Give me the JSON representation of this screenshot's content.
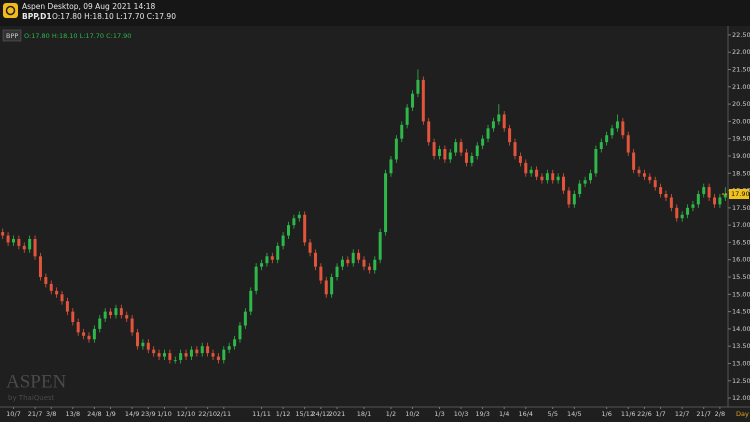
{
  "header": {
    "title": "Aspen Desktop, 09 Aug 2021 14:18",
    "symbol": "BPP,D1",
    "ohlc": "O:17.80 H:18.10 L:17.70 C:17.90"
  },
  "chart_data": {
    "type": "candlestick",
    "symbol": "BPP",
    "ohlc_text": "O:17.80 H:18.10 L:17.70 C:17.90",
    "timeframe": "Day",
    "watermark": "ASPEN",
    "watermark_sub": "by ThaiQuest",
    "up_color": "#2eb84a",
    "down_color": "#e2553b",
    "last_price": {
      "value": 17.9,
      "label": "17.90"
    },
    "categories": [
      null,
      null,
      "10/7",
      null,
      null,
      null,
      "21/7",
      null,
      null,
      "3/8",
      null,
      null,
      null,
      "13/8",
      null,
      null,
      null,
      "24/8",
      null,
      null,
      "1/9",
      null,
      null,
      null,
      "14/9",
      null,
      null,
      "23/9",
      null,
      null,
      "1/10",
      null,
      null,
      null,
      "12/10",
      null,
      null,
      null,
      "22/10",
      null,
      null,
      "2/11",
      null,
      null,
      null,
      null,
      null,
      null,
      "11/11",
      null,
      null,
      null,
      "1/12",
      null,
      null,
      null,
      "15/12",
      null,
      null,
      "24/12",
      null,
      null,
      "2021",
      null,
      null,
      null,
      null,
      "18/1",
      null,
      null,
      null,
      null,
      "1/2",
      null,
      null,
      null,
      "10/2",
      null,
      null,
      null,
      null,
      "1/3",
      null,
      null,
      null,
      "10/3",
      null,
      null,
      null,
      "19/3",
      null,
      null,
      null,
      "1/4",
      null,
      null,
      null,
      "16/4",
      null,
      null,
      null,
      null,
      "5/5",
      null,
      null,
      null,
      "14/5",
      null,
      null,
      null,
      null,
      null,
      "1/6",
      null,
      null,
      null,
      "11/6",
      null,
      null,
      "22/6",
      null,
      null,
      "1/7",
      null,
      null,
      null,
      "12/7",
      null,
      null,
      null,
      "21/7",
      null,
      null,
      "2/8",
      null
    ],
    "open": [
      16.8,
      16.7,
      16.5,
      16.6,
      16.4,
      16.3,
      16.6,
      16.1,
      15.5,
      15.3,
      15.1,
      15.0,
      14.8,
      14.5,
      14.2,
      13.9,
      13.8,
      13.7,
      14.0,
      14.3,
      14.5,
      14.4,
      14.6,
      14.4,
      14.3,
      13.9,
      13.5,
      13.6,
      13.4,
      13.3,
      13.2,
      13.3,
      13.1,
      13.1,
      13.3,
      13.2,
      13.4,
      13.3,
      13.5,
      13.3,
      13.2,
      13.1,
      13.4,
      13.5,
      13.7,
      14.1,
      14.5,
      15.1,
      15.8,
      15.9,
      16.1,
      16.0,
      16.4,
      16.7,
      17.0,
      17.2,
      17.3,
      16.5,
      16.2,
      15.8,
      15.4,
      15.0,
      15.5,
      15.8,
      16.0,
      15.9,
      16.2,
      16.0,
      15.8,
      15.7,
      16.0,
      16.8,
      18.5,
      18.9,
      19.5,
      19.9,
      20.4,
      20.8,
      21.2,
      20.0,
      19.4,
      19.0,
      19.2,
      18.9,
      19.1,
      19.4,
      19.1,
      18.8,
      19.0,
      19.3,
      19.5,
      19.8,
      20.0,
      20.2,
      19.8,
      19.4,
      19.0,
      18.8,
      18.5,
      18.6,
      18.4,
      18.3,
      18.5,
      18.3,
      18.4,
      18.0,
      17.6,
      17.9,
      18.2,
      18.3,
      18.5,
      19.2,
      19.4,
      19.6,
      19.8,
      20.0,
      19.6,
      19.1,
      18.6,
      18.5,
      18.4,
      18.3,
      18.1,
      17.9,
      17.8,
      17.5,
      17.2,
      17.3,
      17.5,
      17.6,
      17.9,
      18.1,
      17.8,
      17.6,
      17.8
    ],
    "high": [
      16.9,
      16.8,
      16.7,
      16.7,
      16.5,
      16.7,
      16.7,
      16.2,
      15.6,
      15.4,
      15.2,
      15.1,
      14.9,
      14.6,
      14.3,
      14.0,
      13.9,
      14.1,
      14.4,
      14.6,
      14.6,
      14.7,
      14.7,
      14.5,
      14.4,
      14.0,
      13.7,
      13.7,
      13.5,
      13.4,
      13.4,
      13.4,
      13.2,
      13.4,
      13.4,
      13.5,
      13.5,
      13.6,
      13.6,
      13.4,
      13.3,
      13.5,
      13.6,
      13.8,
      14.2,
      14.6,
      15.2,
      15.9,
      16.0,
      16.2,
      16.2,
      16.5,
      16.8,
      17.1,
      17.3,
      17.4,
      17.4,
      16.6,
      16.3,
      15.9,
      15.5,
      15.6,
      15.9,
      16.1,
      16.1,
      16.3,
      16.3,
      16.1,
      15.9,
      16.1,
      16.9,
      18.6,
      19.0,
      19.6,
      20.0,
      20.5,
      20.9,
      21.5,
      21.3,
      20.1,
      19.5,
      19.3,
      19.3,
      19.2,
      19.5,
      19.5,
      19.2,
      19.1,
      19.4,
      19.6,
      19.9,
      20.1,
      20.5,
      20.3,
      19.9,
      19.5,
      19.1,
      18.9,
      18.7,
      18.7,
      18.5,
      18.6,
      18.6,
      18.5,
      18.5,
      18.1,
      18.0,
      18.3,
      18.4,
      18.6,
      19.3,
      19.5,
      19.7,
      19.9,
      20.2,
      20.1,
      19.7,
      19.2,
      18.7,
      18.6,
      18.5,
      18.4,
      18.2,
      18.0,
      17.9,
      17.6,
      17.4,
      17.6,
      17.7,
      18.0,
      18.2,
      18.2,
      17.9,
      17.9,
      18.1
    ],
    "low": [
      16.6,
      16.4,
      16.4,
      16.3,
      16.2,
      16.2,
      16.0,
      15.4,
      15.2,
      15.0,
      14.9,
      14.7,
      14.4,
      14.1,
      13.8,
      13.7,
      13.6,
      13.6,
      13.9,
      14.2,
      14.3,
      14.3,
      14.3,
      14.2,
      13.8,
      13.4,
      13.4,
      13.3,
      13.2,
      13.1,
      13.1,
      13.0,
      13.0,
      13.0,
      13.1,
      13.1,
      13.2,
      13.2,
      13.2,
      13.1,
      13.0,
      13.0,
      13.3,
      13.4,
      13.6,
      14.0,
      14.4,
      15.0,
      15.7,
      15.8,
      15.9,
      15.9,
      16.3,
      16.6,
      16.9,
      17.1,
      16.4,
      16.1,
      15.7,
      15.3,
      14.9,
      14.9,
      15.4,
      15.7,
      15.8,
      15.8,
      15.9,
      15.7,
      15.6,
      15.6,
      15.9,
      16.7,
      18.4,
      18.8,
      19.4,
      19.8,
      20.3,
      20.7,
      19.9,
      19.3,
      18.9,
      18.9,
      18.8,
      18.8,
      19.0,
      19.0,
      18.7,
      18.7,
      18.9,
      19.2,
      19.4,
      19.7,
      19.9,
      19.7,
      19.3,
      18.9,
      18.7,
      18.4,
      18.4,
      18.3,
      18.2,
      18.2,
      18.2,
      18.2,
      17.9,
      17.5,
      17.5,
      17.8,
      18.1,
      18.2,
      18.4,
      19.1,
      19.3,
      19.5,
      19.7,
      19.5,
      19.0,
      18.5,
      18.4,
      18.3,
      18.2,
      18.0,
      17.8,
      17.7,
      17.4,
      17.1,
      17.1,
      17.2,
      17.4,
      17.5,
      17.8,
      17.7,
      17.5,
      17.5,
      17.7
    ],
    "close": [
      16.7,
      16.5,
      16.6,
      16.4,
      16.3,
      16.6,
      16.1,
      15.5,
      15.3,
      15.1,
      15.0,
      14.8,
      14.5,
      14.2,
      13.9,
      13.8,
      13.7,
      14.0,
      14.3,
      14.5,
      14.4,
      14.6,
      14.4,
      14.3,
      13.9,
      13.5,
      13.6,
      13.4,
      13.3,
      13.2,
      13.3,
      13.1,
      13.1,
      13.3,
      13.2,
      13.4,
      13.3,
      13.5,
      13.3,
      13.2,
      13.1,
      13.4,
      13.5,
      13.7,
      14.1,
      14.5,
      15.1,
      15.8,
      15.9,
      16.1,
      16.0,
      16.4,
      16.7,
      17.0,
      17.2,
      17.3,
      16.5,
      16.2,
      15.8,
      15.4,
      15.0,
      15.5,
      15.8,
      16.0,
      15.9,
      16.2,
      16.0,
      15.8,
      15.7,
      16.0,
      16.8,
      18.5,
      18.9,
      19.5,
      19.9,
      20.4,
      20.8,
      21.2,
      20.0,
      19.4,
      19.0,
      19.2,
      18.9,
      19.1,
      19.4,
      19.1,
      18.8,
      19.0,
      19.3,
      19.5,
      19.8,
      20.0,
      20.2,
      19.8,
      19.4,
      19.0,
      18.8,
      18.5,
      18.6,
      18.4,
      18.3,
      18.5,
      18.3,
      18.4,
      18.0,
      17.6,
      17.9,
      18.2,
      18.3,
      18.5,
      19.2,
      19.4,
      19.6,
      19.8,
      20.0,
      19.6,
      19.1,
      18.6,
      18.5,
      18.4,
      18.3,
      18.1,
      17.9,
      17.8,
      17.5,
      17.2,
      17.3,
      17.5,
      17.6,
      17.9,
      18.1,
      17.8,
      17.6,
      17.8,
      17.9
    ],
    "ylim": [
      11.8,
      22.7
    ],
    "yticks": [
      {
        "value": 12,
        "label": "12.00"
      },
      {
        "value": 12.5,
        "label": "12.50"
      },
      {
        "value": 13,
        "label": "13.00"
      },
      {
        "value": 13.5,
        "label": "13.50"
      },
      {
        "value": 14,
        "label": "14.00"
      },
      {
        "value": 14.5,
        "label": "14.50"
      },
      {
        "value": 15,
        "label": "15.00"
      },
      {
        "value": 15.5,
        "label": "15.50"
      },
      {
        "value": 16,
        "label": "16.00"
      },
      {
        "value": 16.5,
        "label": "16.50"
      },
      {
        "value": 17,
        "label": "17.00"
      },
      {
        "value": 17.5,
        "label": "17.50"
      },
      {
        "value": 18,
        "label": "18.00"
      },
      {
        "value": 18.5,
        "label": "18.50"
      },
      {
        "value": 19,
        "label": "19.00"
      },
      {
        "value": 19.5,
        "label": "19.50"
      },
      {
        "value": 20,
        "label": "20.00"
      },
      {
        "value": 20.5,
        "label": "20.50"
      },
      {
        "value": 21,
        "label": "21.00"
      },
      {
        "value": 21.5,
        "label": "21.50"
      },
      {
        "value": 22,
        "label": "22.00"
      },
      {
        "value": 22.5,
        "label": "22.50"
      }
    ]
  }
}
